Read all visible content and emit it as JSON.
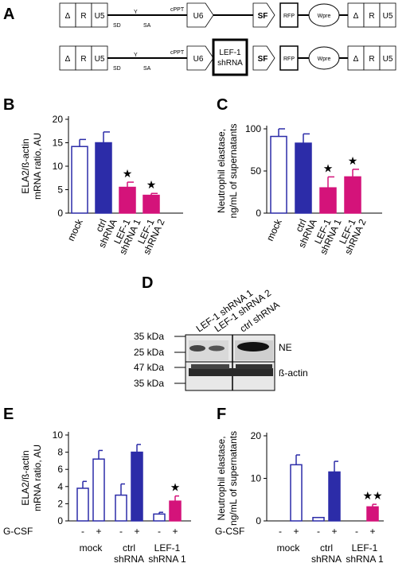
{
  "colors": {
    "mock": "#ffffff",
    "ctrl": "#2c2ca8",
    "lef": "#d4137a",
    "outline": "#2c2ca8",
    "black": "#000000"
  },
  "panelA": {
    "letter": "A",
    "ltr_labels": [
      "Δ",
      "R",
      "U5"
    ],
    "SD": "SD",
    "SA": "SA",
    "cPPT": "cPPT",
    "U6": "U6",
    "SF": "SF",
    "RFP": "RFP",
    "Wpre": "Wpre",
    "insert_line1": "LEF-1",
    "insert_line2": "shRNA"
  },
  "panelD": {
    "letter": "D",
    "lane_labels": [
      "LEF-1 shRNA 1",
      "LEF-1 shRNA 2",
      "ctrl shRNA"
    ],
    "kda_top": [
      "35 kDa",
      "25 kDa"
    ],
    "kda_bottom": [
      "47 kDa",
      "35 kDa"
    ],
    "band_top": "NE",
    "band_bottom": "ß-actin"
  },
  "chart_data": [
    {
      "id": "B",
      "type": "bar",
      "letter": "B",
      "ylabel_line1": "ELA2/ß-actin",
      "ylabel_line2": "mRNA ratio, AU",
      "ylim": [
        0,
        20
      ],
      "yticks": [
        0,
        5,
        10,
        15,
        20
      ],
      "categories": [
        [
          "mock"
        ],
        [
          "ctrl",
          "shRNA"
        ],
        [
          "LEF-1",
          "shRNA 1"
        ],
        [
          "LEF-1",
          "shRNA 2"
        ]
      ],
      "values": [
        14.2,
        15.0,
        5.5,
        3.8
      ],
      "errors": [
        1.5,
        2.3,
        1.1,
        0.4
      ],
      "fills": [
        "mock",
        "ctrl",
        "lef",
        "lef"
      ],
      "stars": [
        "",
        "",
        "★",
        "★"
      ]
    },
    {
      "id": "C",
      "type": "bar",
      "letter": "C",
      "ylabel_line1": "Neutrophil elastase,",
      "ylabel_line2": "ng/mL of supernatants",
      "ylim": [
        0,
        100
      ],
      "yticks": [
        0,
        50,
        100
      ],
      "categories": [
        [
          "mock"
        ],
        [
          "ctrl",
          "shRNA"
        ],
        [
          "LEF-1",
          "shRNA 1"
        ],
        [
          "LEF-1",
          "shRNA 2"
        ]
      ],
      "values": [
        91,
        83,
        30,
        43
      ],
      "errors": [
        9,
        11,
        13,
        9
      ],
      "fills": [
        "mock",
        "ctrl",
        "lef",
        "lef"
      ],
      "stars": [
        "",
        "",
        "★",
        "★"
      ]
    },
    {
      "id": "E",
      "type": "bar",
      "letter": "E",
      "ylabel_line1": "ELA2/ß-actin",
      "ylabel_line2": "mRNA ratio, AU",
      "ylim": [
        0,
        10
      ],
      "yticks": [
        0,
        2,
        4,
        6,
        8,
        10
      ],
      "treatment_label": "G-CSF",
      "treatment_signs": [
        "-",
        "+"
      ],
      "groups": [
        {
          "label": [
            "mock"
          ],
          "values": [
            3.8,
            7.2
          ],
          "errors": [
            0.8,
            1.0
          ],
          "fills": [
            "mock",
            "mock"
          ],
          "star": ""
        },
        {
          "label": [
            "ctrl",
            "shRNA"
          ],
          "values": [
            3.0,
            8.0
          ],
          "errors": [
            1.3,
            0.9
          ],
          "fills": [
            "mock",
            "ctrl"
          ],
          "star": ""
        },
        {
          "label": [
            "LEF-1",
            "shRNA 1"
          ],
          "values": [
            0.8,
            2.3
          ],
          "errors": [
            0.2,
            0.6
          ],
          "fills": [
            "mock",
            "lef"
          ],
          "star": "★"
        }
      ]
    },
    {
      "id": "F",
      "type": "bar",
      "letter": "F",
      "ylabel_line1": "Neutrophil elastase,",
      "ylabel_line2": "ng/mL of supernatants",
      "ylim": [
        0,
        20
      ],
      "yticks": [
        0,
        10,
        20
      ],
      "treatment_label": "G-CSF",
      "treatment_signs": [
        "-",
        "+"
      ],
      "groups": [
        {
          "label": [
            "mock"
          ],
          "values": [
            0,
            13.2
          ],
          "errors": [
            0,
            2.3
          ],
          "fills": [
            "mock",
            "mock"
          ],
          "star": ""
        },
        {
          "label": [
            "ctrl",
            "shRNA"
          ],
          "values": [
            0.8,
            11.5
          ],
          "errors": [
            0,
            2.5
          ],
          "fills": [
            "mock",
            "ctrl"
          ],
          "star": ""
        },
        {
          "label": [
            "LEF-1",
            "shRNA 1"
          ],
          "values": [
            0,
            3.3
          ],
          "errors": [
            0,
            0.6
          ],
          "fills": [
            "mock",
            "lef"
          ],
          "star": "★★"
        }
      ]
    }
  ]
}
